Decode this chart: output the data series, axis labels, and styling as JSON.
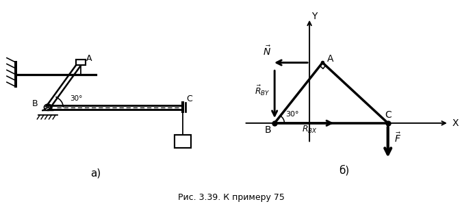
{
  "fig_width": 6.75,
  "fig_height": 2.98,
  "dpi": 100,
  "background": "#ffffff",
  "caption": "Рис. 3.39. К примеру 75",
  "label_a": "а)",
  "label_b": "б)"
}
